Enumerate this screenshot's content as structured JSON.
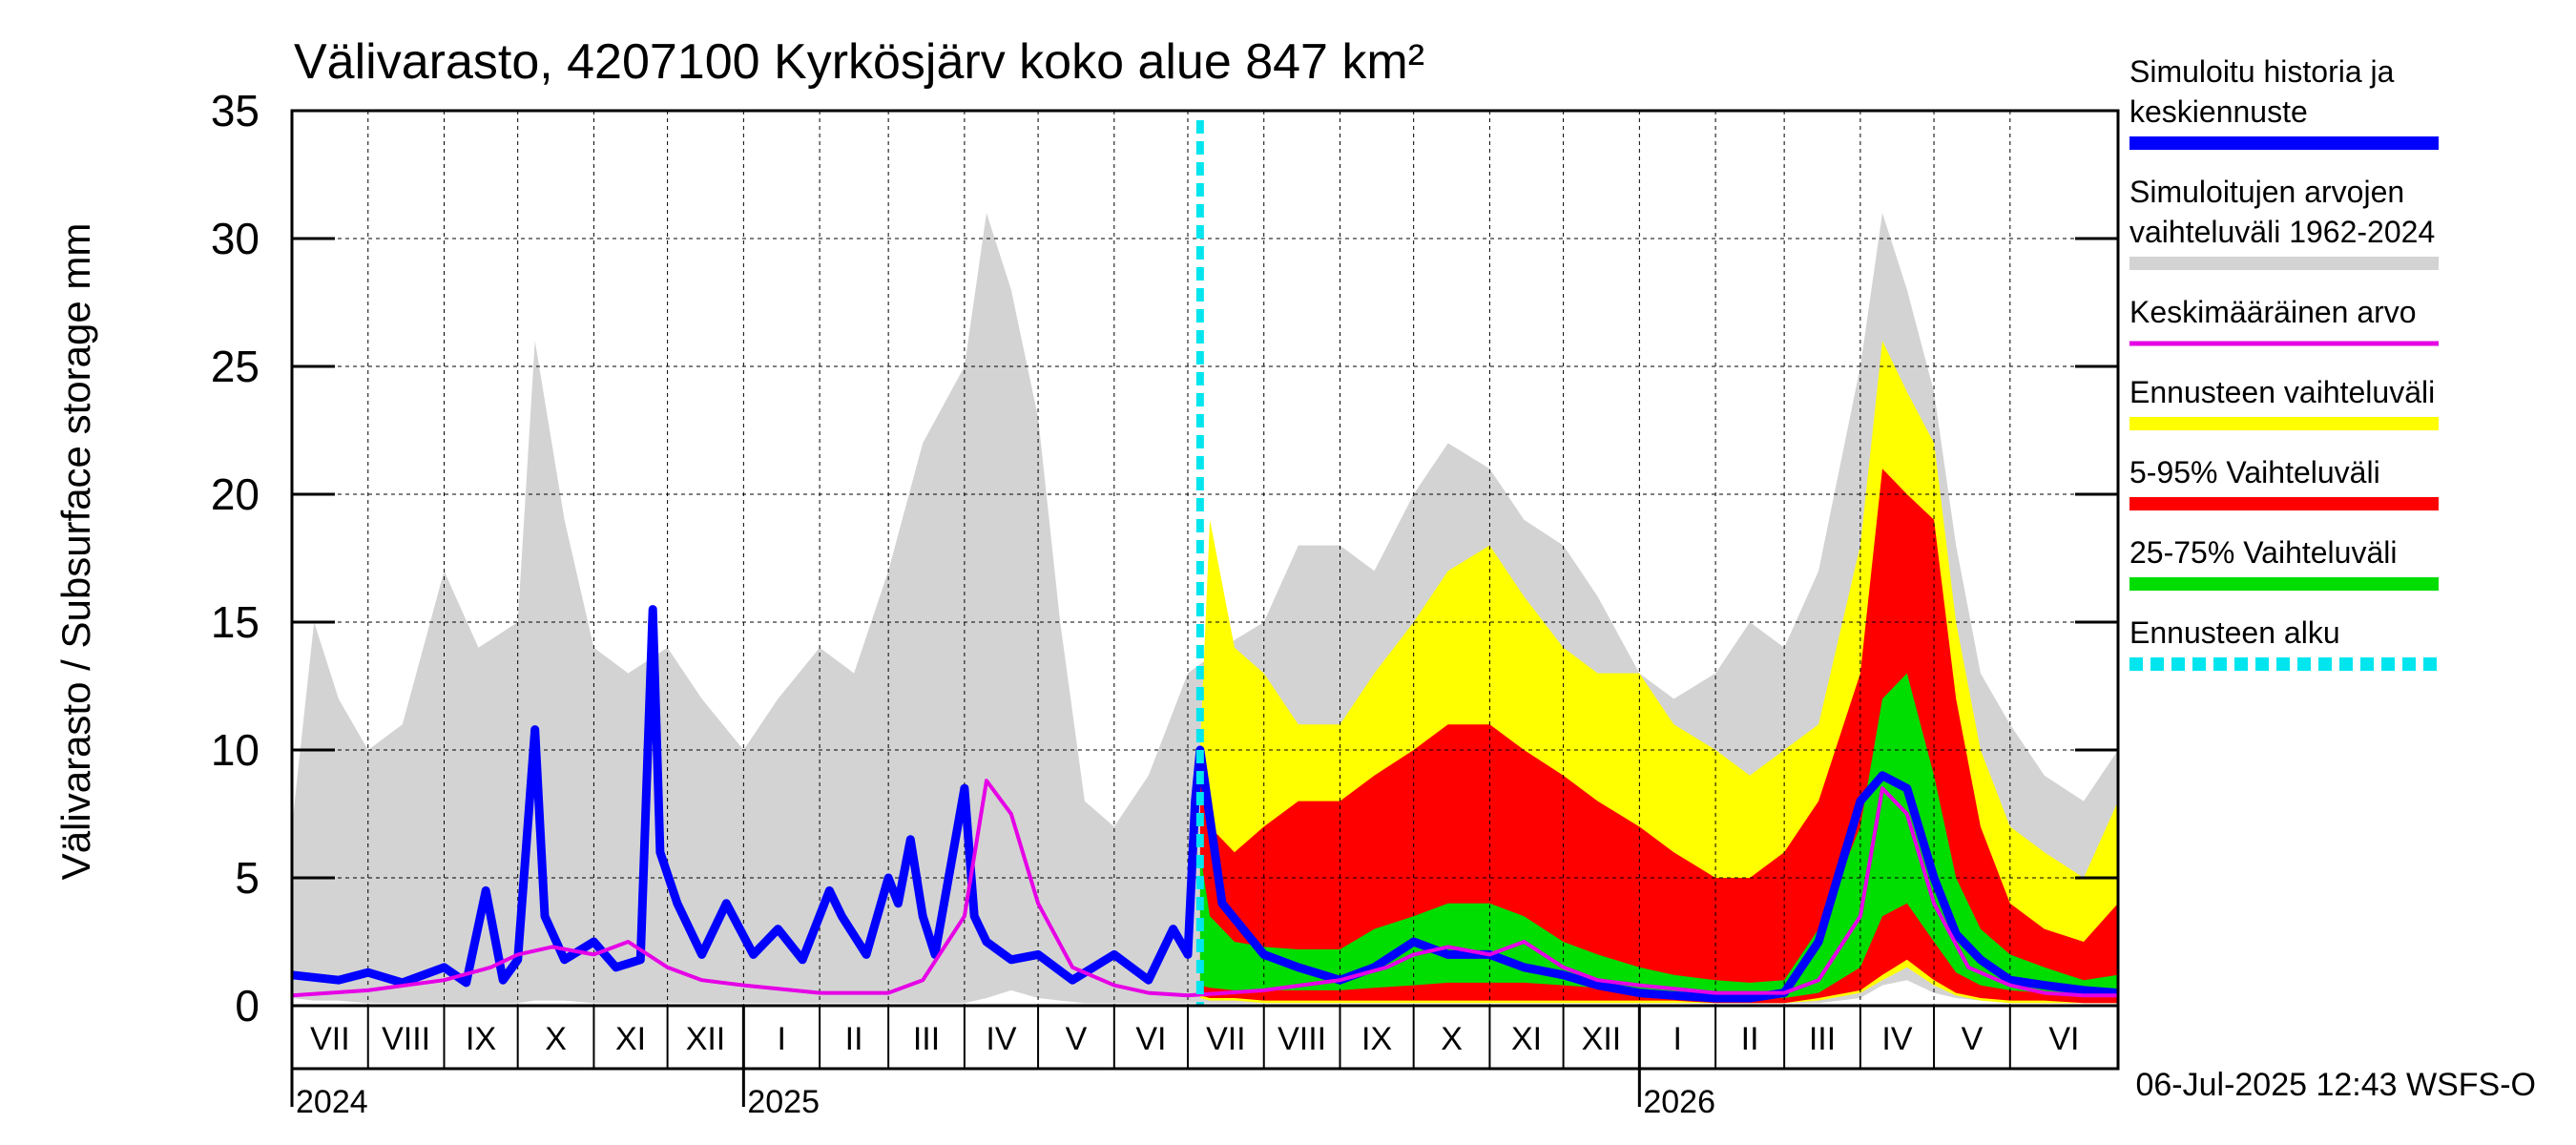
{
  "chart_data": {
    "type": "area",
    "title": "Välivarasto, 4207100 Kyrkösjärv koko alue 847 km²",
    "ylabel": "Välivarasto / Subsurface storage  mm",
    "ylim": [
      0,
      35
    ],
    "yticks": [
      0,
      5,
      10,
      15,
      20,
      25,
      30,
      35
    ],
    "xlim": [
      "2024-07-01",
      "2026-07-15"
    ],
    "forecast_start": "2025-07-06",
    "grid": true,
    "legend_position": "right",
    "footer": "06-Jul-2025 12:43 WSFS-O",
    "months": [
      {
        "label": "VII",
        "start": "2024-07-01"
      },
      {
        "label": "VIII",
        "start": "2024-08-01"
      },
      {
        "label": "IX",
        "start": "2024-09-01"
      },
      {
        "label": "X",
        "start": "2024-10-01"
      },
      {
        "label": "XI",
        "start": "2024-11-01"
      },
      {
        "label": "XII",
        "start": "2024-12-01"
      },
      {
        "label": "I",
        "start": "2025-01-01"
      },
      {
        "label": "II",
        "start": "2025-02-01"
      },
      {
        "label": "III",
        "start": "2025-03-01"
      },
      {
        "label": "IV",
        "start": "2025-04-01"
      },
      {
        "label": "V",
        "start": "2025-05-01"
      },
      {
        "label": "VI",
        "start": "2025-06-01"
      },
      {
        "label": "VII",
        "start": "2025-07-01"
      },
      {
        "label": "VIII",
        "start": "2025-08-01"
      },
      {
        "label": "IX",
        "start": "2025-09-01"
      },
      {
        "label": "X",
        "start": "2025-10-01"
      },
      {
        "label": "XI",
        "start": "2025-11-01"
      },
      {
        "label": "XII",
        "start": "2025-12-01"
      },
      {
        "label": "I",
        "start": "2026-01-01"
      },
      {
        "label": "II",
        "start": "2026-02-01"
      },
      {
        "label": "III",
        "start": "2026-03-01"
      },
      {
        "label": "IV",
        "start": "2026-04-01"
      },
      {
        "label": "V",
        "start": "2026-05-01"
      },
      {
        "label": "VI",
        "start": "2026-06-01"
      }
    ],
    "years": [
      {
        "label": "2024",
        "start": "2024-07-01"
      },
      {
        "label": "2025",
        "start": "2025-01-01"
      },
      {
        "label": "2026",
        "start": "2026-01-01"
      }
    ],
    "legend": [
      {
        "label": "Simuloitu historia ja keskiennuste",
        "color": "#0000ff",
        "style": "solid"
      },
      {
        "label": "Simuloitujen arvojen vaihteluväli 1962-2024",
        "color": "#d3d3d3",
        "style": "solid"
      },
      {
        "label": "Keskimääräinen arvo",
        "color": "#e600e6",
        "style": "thin"
      },
      {
        "label": "Ennusteen vaihteluväli",
        "color": "#ffff00",
        "style": "solid"
      },
      {
        "label": "5-95% Vaihteluväli",
        "color": "#ff0000",
        "style": "solid"
      },
      {
        "label": "25-75% Vaihteluväli",
        "color": "#00dd00",
        "style": "solid"
      },
      {
        "label": "Ennusteen alku",
        "color": "#00e5ee",
        "style": "dashed"
      }
    ],
    "series": [
      {
        "name": "Simuloitujen arvojen vaihteluväli 1962-2024",
        "color": "#d3d3d3",
        "x": [
          "2024-07-01",
          "2024-07-10",
          "2024-07-20",
          "2024-08-01",
          "2024-08-15",
          "2024-09-01",
          "2024-09-15",
          "2024-10-01",
          "2024-10-08",
          "2024-10-20",
          "2024-11-01",
          "2024-11-15",
          "2024-12-01",
          "2024-12-15",
          "2025-01-01",
          "2025-01-15",
          "2025-02-01",
          "2025-02-15",
          "2025-03-01",
          "2025-03-15",
          "2025-04-01",
          "2025-04-10",
          "2025-04-20",
          "2025-05-01",
          "2025-05-10",
          "2025-05-20",
          "2025-06-01",
          "2025-06-15",
          "2025-07-01",
          "2025-07-15",
          "2025-08-01",
          "2025-08-15",
          "2025-09-01",
          "2025-09-15",
          "2025-10-01",
          "2025-10-15",
          "2025-11-01",
          "2025-11-15",
          "2025-12-01",
          "2025-12-15",
          "2026-01-01",
          "2026-01-15",
          "2026-02-01",
          "2026-02-15",
          "2026-03-01",
          "2026-03-15",
          "2026-04-01",
          "2026-04-10",
          "2026-04-20",
          "2026-05-01",
          "2026-05-10",
          "2026-05-20",
          "2026-06-01",
          "2026-06-15",
          "2026-07-01",
          "2026-07-15"
        ],
        "upper": [
          7,
          15,
          12,
          10,
          11,
          17,
          14,
          15,
          26,
          19,
          14,
          13,
          14,
          12,
          10,
          12,
          14,
          13,
          17,
          22,
          25,
          31,
          28,
          23,
          15,
          8,
          7,
          9,
          13,
          14,
          15,
          18,
          18,
          17,
          20,
          22,
          21,
          19,
          18,
          16,
          13,
          12,
          13,
          15,
          14,
          17,
          25,
          31,
          28,
          24,
          18,
          13,
          11,
          9,
          8,
          10
        ],
        "lower": [
          0.3,
          0.2,
          0.2,
          0.1,
          0.1,
          0.1,
          0.1,
          0.1,
          0.2,
          0.2,
          0.1,
          0.1,
          0.1,
          0.1,
          0.1,
          0.1,
          0.1,
          0.1,
          0.1,
          0.1,
          0.1,
          0.3,
          0.6,
          0.3,
          0.2,
          0.1,
          0.1,
          0.1,
          0.1,
          0.1,
          0.1,
          0.1,
          0.1,
          0.1,
          0.1,
          0.1,
          0.1,
          0.1,
          0.1,
          0.1,
          0.1,
          0.1,
          0.1,
          0.1,
          0.1,
          0.1,
          0.3,
          0.8,
          1.0,
          0.5,
          0.3,
          0.2,
          0.1,
          0.1,
          0.1,
          0.1
        ]
      },
      {
        "name": "Ennusteen vaihteluväli",
        "color": "#ffff00",
        "x": [
          "2025-07-06",
          "2025-07-10",
          "2025-07-20",
          "2025-08-01",
          "2025-08-15",
          "2025-09-01",
          "2025-09-15",
          "2025-10-01",
          "2025-10-15",
          "2025-11-01",
          "2025-11-15",
          "2025-12-01",
          "2025-12-15",
          "2026-01-01",
          "2026-01-15",
          "2026-02-01",
          "2026-02-15",
          "2026-03-01",
          "2026-03-15",
          "2026-04-01",
          "2026-04-10",
          "2026-04-20",
          "2026-05-01",
          "2026-05-10",
          "2026-05-20",
          "2026-06-01",
          "2026-06-15",
          "2026-07-01",
          "2026-07-15"
        ],
        "upper": [
          10,
          19,
          14,
          13,
          11,
          11,
          13,
          15,
          17,
          18,
          16,
          14,
          13,
          13,
          11,
          10,
          9,
          10,
          11,
          18,
          26,
          24,
          22,
          15,
          10,
          7,
          6,
          5,
          8
        ],
        "lower": [
          0.3,
          0.2,
          0.2,
          0.1,
          0.1,
          0.1,
          0.1,
          0.1,
          0.1,
          0.1,
          0.1,
          0.1,
          0.1,
          0.1,
          0.1,
          0.1,
          0.1,
          0.1,
          0.2,
          0.5,
          1.0,
          1.5,
          0.8,
          0.4,
          0.2,
          0.1,
          0.1,
          0.1,
          0.1
        ]
      },
      {
        "name": "5-95% Vaihteluväli",
        "color": "#ff0000",
        "x": [
          "2025-07-06",
          "2025-07-10",
          "2025-07-20",
          "2025-08-01",
          "2025-08-15",
          "2025-09-01",
          "2025-09-15",
          "2025-10-01",
          "2025-10-15",
          "2025-11-01",
          "2025-11-15",
          "2025-12-01",
          "2025-12-15",
          "2026-01-01",
          "2026-01-15",
          "2026-02-01",
          "2026-02-15",
          "2026-03-01",
          "2026-03-15",
          "2026-04-01",
          "2026-04-10",
          "2026-04-20",
          "2026-05-01",
          "2026-05-10",
          "2026-05-20",
          "2026-06-01",
          "2026-06-15",
          "2026-07-01",
          "2026-07-15"
        ],
        "upper": [
          9,
          7,
          6,
          7,
          8,
          8,
          9,
          10,
          11,
          11,
          10,
          9,
          8,
          7,
          6,
          5,
          5,
          6,
          8,
          13,
          21,
          20,
          19,
          12,
          7,
          4,
          3,
          2.5,
          4
        ],
        "lower": [
          0.4,
          0.3,
          0.3,
          0.2,
          0.2,
          0.2,
          0.2,
          0.2,
          0.2,
          0.2,
          0.2,
          0.2,
          0.2,
          0.2,
          0.2,
          0.1,
          0.1,
          0.1,
          0.3,
          0.6,
          1.2,
          1.8,
          1.0,
          0.5,
          0.3,
          0.2,
          0.2,
          0.1,
          0.1
        ]
      },
      {
        "name": "25-75% Vaihteluväli",
        "color": "#00dd00",
        "x": [
          "2025-07-06",
          "2025-07-10",
          "2025-07-20",
          "2025-08-01",
          "2025-08-15",
          "2025-09-01",
          "2025-09-15",
          "2025-10-01",
          "2025-10-15",
          "2025-11-01",
          "2025-11-15",
          "2025-12-01",
          "2025-12-15",
          "2026-01-01",
          "2026-01-15",
          "2026-02-01",
          "2026-02-15",
          "2026-03-01",
          "2026-03-15",
          "2026-04-01",
          "2026-04-10",
          "2026-04-20",
          "2026-05-01",
          "2026-05-10",
          "2026-05-20",
          "2026-06-01",
          "2026-06-15",
          "2026-07-01",
          "2026-07-15"
        ],
        "upper": [
          6,
          3.5,
          2.5,
          2.3,
          2.2,
          2.2,
          3.0,
          3.5,
          4.0,
          4.0,
          3.5,
          2.5,
          2.0,
          1.5,
          1.2,
          1.0,
          0.9,
          1.0,
          3.0,
          7.0,
          12.0,
          13.0,
          9.0,
          5.0,
          3.0,
          2.0,
          1.5,
          1.0,
          1.2
        ],
        "lower": [
          0.8,
          0.7,
          0.6,
          0.6,
          0.6,
          0.6,
          0.7,
          0.8,
          0.9,
          0.9,
          0.9,
          0.8,
          0.7,
          0.6,
          0.5,
          0.4,
          0.3,
          0.3,
          0.5,
          1.5,
          3.5,
          4.0,
          2.5,
          1.3,
          0.8,
          0.6,
          0.5,
          0.4,
          0.4
        ]
      }
    ],
    "lines": [
      {
        "name": "Simuloitu historia ja keskiennuste",
        "color": "#0000ff",
        "x": [
          "2024-07-01",
          "2024-07-20",
          "2024-08-01",
          "2024-08-15",
          "2024-09-01",
          "2024-09-10",
          "2024-09-18",
          "2024-09-25",
          "2024-10-01",
          "2024-10-08",
          "2024-10-12",
          "2024-10-20",
          "2024-11-01",
          "2024-11-10",
          "2024-11-20",
          "2024-11-25",
          "2024-11-28",
          "2024-12-05",
          "2024-12-15",
          "2024-12-25",
          "2025-01-05",
          "2025-01-15",
          "2025-01-25",
          "2025-02-05",
          "2025-02-10",
          "2025-02-20",
          "2025-03-01",
          "2025-03-05",
          "2025-03-10",
          "2025-03-15",
          "2025-03-20",
          "2025-04-01",
          "2025-04-05",
          "2025-04-10",
          "2025-04-20",
          "2025-05-01",
          "2025-05-15",
          "2025-06-01",
          "2025-06-15",
          "2025-06-25",
          "2025-07-01",
          "2025-07-04",
          "2025-07-06",
          "2025-07-15",
          "2025-08-01",
          "2025-08-15",
          "2025-09-01",
          "2025-09-15",
          "2025-10-01",
          "2025-10-15",
          "2025-11-01",
          "2025-11-15",
          "2025-12-01",
          "2025-12-15",
          "2026-01-01",
          "2026-01-15",
          "2026-02-01",
          "2026-02-15",
          "2026-03-01",
          "2026-03-15",
          "2026-04-01",
          "2026-04-10",
          "2026-04-20",
          "2026-05-01",
          "2026-05-10",
          "2026-05-20",
          "2026-06-01",
          "2026-06-15",
          "2026-07-01",
          "2026-07-15"
        ],
        "y": [
          1.2,
          1.0,
          1.3,
          0.9,
          1.5,
          0.9,
          4.5,
          1.0,
          1.8,
          10.8,
          3.5,
          1.8,
          2.5,
          1.5,
          1.8,
          15.5,
          6.0,
          4.0,
          2.0,
          4.0,
          2.0,
          3.0,
          1.8,
          4.5,
          3.5,
          2.0,
          5.0,
          4.0,
          6.5,
          3.5,
          2.0,
          8.5,
          3.5,
          2.5,
          1.8,
          2.0,
          1.0,
          2.0,
          1.0,
          3.0,
          2.0,
          8.0,
          10.0,
          4.0,
          2.0,
          1.5,
          1.0,
          1.5,
          2.5,
          2.0,
          2.0,
          1.5,
          1.2,
          0.8,
          0.5,
          0.4,
          0.3,
          0.3,
          0.5,
          2.5,
          8.0,
          9.0,
          8.5,
          5.0,
          2.8,
          1.8,
          1.0,
          0.8,
          0.6,
          0.5
        ]
      },
      {
        "name": "Keskimääräinen arvo",
        "color": "#e600e6",
        "x": [
          "2024-07-01",
          "2024-08-01",
          "2024-09-01",
          "2024-09-20",
          "2024-10-01",
          "2024-10-15",
          "2024-11-01",
          "2024-11-15",
          "2024-12-01",
          "2024-12-15",
          "2025-01-01",
          "2025-02-01",
          "2025-03-01",
          "2025-03-15",
          "2025-04-01",
          "2025-04-10",
          "2025-04-20",
          "2025-05-01",
          "2025-05-15",
          "2025-06-01",
          "2025-06-15",
          "2025-07-01",
          "2025-08-01",
          "2025-09-01",
          "2025-09-20",
          "2025-10-01",
          "2025-10-15",
          "2025-11-01",
          "2025-11-15",
          "2025-12-01",
          "2025-12-15",
          "2026-01-01",
          "2026-02-01",
          "2026-03-01",
          "2026-03-15",
          "2026-04-01",
          "2026-04-10",
          "2026-04-20",
          "2026-05-01",
          "2026-05-15",
          "2026-06-01",
          "2026-06-15",
          "2026-07-01",
          "2026-07-15"
        ],
        "y": [
          0.4,
          0.6,
          1.0,
          1.5,
          2.0,
          2.3,
          2.0,
          2.5,
          1.5,
          1.0,
          0.8,
          0.5,
          0.5,
          1.0,
          3.5,
          8.8,
          7.5,
          4.0,
          1.5,
          0.8,
          0.5,
          0.4,
          0.6,
          1.0,
          1.5,
          2.0,
          2.3,
          2.0,
          2.5,
          1.5,
          1.0,
          0.8,
          0.5,
          0.5,
          1.0,
          3.5,
          8.5,
          7.5,
          4.0,
          1.5,
          0.8,
          0.5,
          0.4,
          0.4
        ]
      }
    ]
  }
}
